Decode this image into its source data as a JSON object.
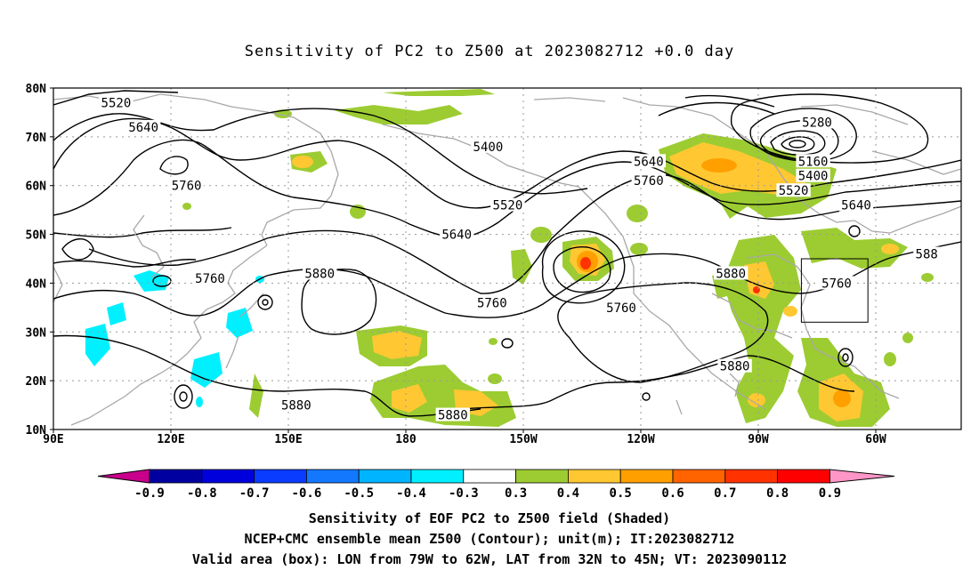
{
  "title": "Sensitivity of PC2 to Z500 at 2023082712 +0.0 day",
  "lat_labels": [
    "80N",
    "70N",
    "60N",
    "50N",
    "40N",
    "30N",
    "20N",
    "10N"
  ],
  "lon_labels": [
    "90E",
    "120E",
    "150E",
    "180",
    "150W",
    "120W",
    "90W",
    "60W"
  ],
  "contour_labels": [
    {
      "text": "5520",
      "lon": 106,
      "lat": 77
    },
    {
      "text": "5640",
      "lon": 113,
      "lat": 72
    },
    {
      "text": "5760",
      "lon": 124,
      "lat": 60
    },
    {
      "text": "5760",
      "lon": 130,
      "lat": 41
    },
    {
      "text": "5880",
      "lon": 158,
      "lat": 42
    },
    {
      "text": "5880",
      "lon": 152,
      "lat": 15
    },
    {
      "text": "5880",
      "lon": 192,
      "lat": 13
    },
    {
      "text": "5400",
      "lon": 201,
      "lat": 68
    },
    {
      "text": "5520",
      "lon": 206,
      "lat": 56
    },
    {
      "text": "5640",
      "lon": 193,
      "lat": 50
    },
    {
      "text": "5760",
      "lon": 202,
      "lat": 36
    },
    {
      "text": "5640",
      "lon": 242,
      "lat": 65
    },
    {
      "text": "5760",
      "lon": 242,
      "lat": 61
    },
    {
      "text": "5760",
      "lon": 235,
      "lat": 35
    },
    {
      "text": "5880",
      "lon": 263,
      "lat": 42
    },
    {
      "text": "5880",
      "lon": 264,
      "lat": 23
    },
    {
      "text": "5280",
      "lon": 285,
      "lat": 73
    },
    {
      "text": "5160",
      "lon": 284,
      "lat": 65
    },
    {
      "text": "5400",
      "lon": 284,
      "lat": 62
    },
    {
      "text": "5520",
      "lon": 279,
      "lat": 59
    },
    {
      "text": "5640",
      "lon": 295,
      "lat": 56
    },
    {
      "text": "5760",
      "lon": 290,
      "lat": 40
    },
    {
      "text": "588",
      "lon": 313,
      "lat": 46
    }
  ],
  "valid_box": {
    "lon_min": 281,
    "lon_max": 298,
    "lat_min": 32,
    "lat_max": 45
  },
  "colorbar": {
    "labels": [
      "-0.9",
      "-0.8",
      "-0.7",
      "-0.6",
      "-0.5",
      "-0.4",
      "-0.3",
      "0.3",
      "0.4",
      "0.5",
      "0.6",
      "0.7",
      "0.8",
      "0.9"
    ],
    "colors": [
      "#0000a0",
      "#0000dc",
      "#0a3cff",
      "#1478ff",
      "#00b4ff",
      "#00f0ff",
      "#ffffff",
      "#9ccc32",
      "#ffc832",
      "#ffa000",
      "#ff6400",
      "#ff3200",
      "#ff0000"
    ],
    "left_tip_color": "#c8008c",
    "right_tip_color": "#ff96c8"
  },
  "caption": [
    "Sensitivity of EOF PC2 to Z500 field (Shaded)",
    "NCEP+CMC ensemble mean Z500 (Contour); unit(m); IT:2023082712",
    "Valid area (box): LON from 79W to 62W, LAT from 32N to 45N; VT: 2023090112"
  ]
}
